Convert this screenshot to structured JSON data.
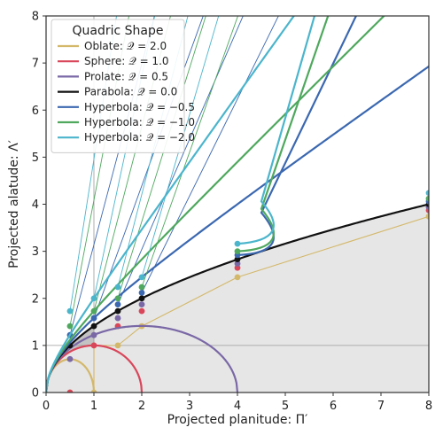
{
  "chart_data": {
    "type": "line",
    "xlabel": "Projected planitude: Π′",
    "ylabel": "Projected alatude: Λ′",
    "xlim": [
      0,
      8
    ],
    "ylim": [
      0,
      8
    ],
    "xticks": [
      "0",
      "1",
      "2",
      "3",
      "4",
      "5",
      "6",
      "7",
      "8"
    ],
    "yticks": [
      "0",
      "1",
      "2",
      "3",
      "4",
      "5",
      "6",
      "7",
      "8"
    ],
    "grid": false,
    "legend_position": "top-left",
    "legend_title": "Quadric Shape",
    "reference_lines": {
      "x": 1,
      "y": 1
    },
    "shaded_region": "below parabola",
    "series": [
      {
        "name": "Oblate: 𝒬 = 2.0",
        "q": 2.0,
        "color": "#D4B86A",
        "points": [
          [
            0.5,
            0.0
          ],
          [
            1.0,
            0.0
          ],
          [
            1.0,
            1.0
          ],
          [
            1.5,
            1.0
          ],
          [
            2.0,
            1.41
          ],
          [
            4.0,
            2.45
          ],
          [
            8.0,
            3.74
          ]
        ]
      },
      {
        "name": "Sphere: 𝒬 = 1.0",
        "q": 1.0,
        "color": "#D9465A",
        "points": [
          [
            0.5,
            0.0
          ],
          [
            1.0,
            1.0
          ],
          [
            1.5,
            1.41
          ],
          [
            2.0,
            1.73
          ],
          [
            4.0,
            2.65
          ],
          [
            8.0,
            3.87
          ]
        ]
      },
      {
        "name": "Prolate: 𝒬 = 0.5",
        "q": 0.5,
        "color": "#7A68A6",
        "points": [
          [
            0.5,
            0.71
          ],
          [
            1.0,
            1.22
          ],
          [
            1.5,
            1.58
          ],
          [
            2.0,
            1.87
          ],
          [
            4.0,
            2.74
          ],
          [
            8.0,
            3.94
          ]
        ]
      },
      {
        "name": "Parabola: 𝒬 = 0.0",
        "q": 0.0,
        "color": "#111111",
        "points": [
          [
            0.5,
            1.0
          ],
          [
            1.0,
            1.41
          ],
          [
            1.5,
            1.73
          ],
          [
            2.0,
            2.0
          ],
          [
            4.0,
            2.83
          ],
          [
            8.0,
            4.0
          ]
        ]
      },
      {
        "name": "Hyperbola: 𝒬 = −0.5",
        "q": -0.5,
        "color": "#3B68B0",
        "points": [
          [
            0.5,
            1.22
          ],
          [
            1.0,
            1.58
          ],
          [
            1.5,
            1.87
          ],
          [
            2.0,
            2.12
          ],
          [
            4.0,
            2.92
          ],
          [
            8.0,
            4.06
          ]
        ]
      },
      {
        "name": "Hyperbola: 𝒬 = −1.0",
        "q": -1.0,
        "color": "#4FA85E",
        "points": [
          [
            0.5,
            1.41
          ],
          [
            1.0,
            1.73
          ],
          [
            1.5,
            2.0
          ],
          [
            2.0,
            2.24
          ],
          [
            4.0,
            3.0
          ],
          [
            8.0,
            4.12
          ]
        ]
      },
      {
        "name": "Hyperbola: 𝒬 = −2.0",
        "q": -2.0,
        "color": "#4BB5CC",
        "points": [
          [
            0.5,
            1.73
          ],
          [
            1.0,
            2.0
          ],
          [
            1.5,
            2.24
          ],
          [
            2.0,
            2.45
          ],
          [
            4.0,
            3.16
          ],
          [
            8.0,
            4.24
          ]
        ]
      }
    ]
  }
}
